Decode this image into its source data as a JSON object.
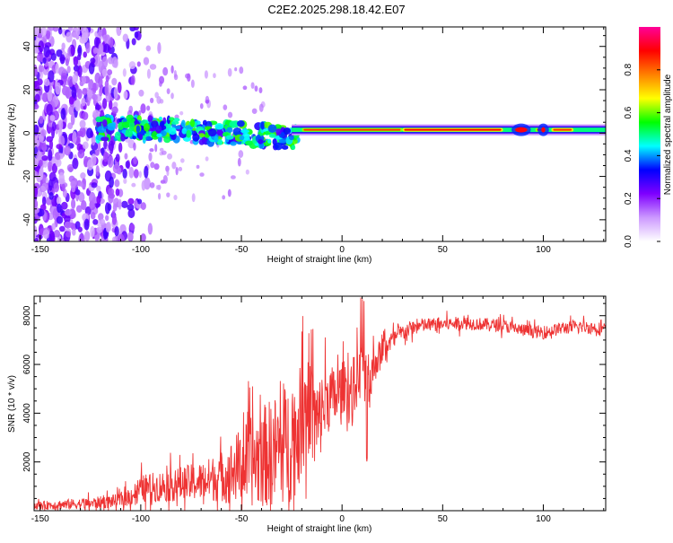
{
  "title": "C2E2.2025.298.18.42.E07",
  "chart_data": [
    {
      "type": "heatmap",
      "name": "spectrogram",
      "xlabel": "Height of straight line (km)",
      "ylabel": "Frequency (Hz)",
      "xlim": [
        -153,
        131
      ],
      "ylim": [
        -50,
        49
      ],
      "xticks": [
        -150,
        -100,
        -50,
        0,
        50,
        100
      ],
      "yticks": [
        -40,
        -20,
        0,
        20,
        40
      ],
      "tone_band": {
        "start_x": -25,
        "end_x": 131,
        "frequency_hz": 1.5,
        "strong_segments": [
          [
            -20,
            30
          ],
          [
            30,
            80
          ],
          [
            85,
            93
          ],
          [
            96,
            102
          ],
          [
            104,
            115
          ]
        ]
      },
      "scattered_region": {
        "x_range": [
          -153,
          -108
        ],
        "frequency_range": [
          -50,
          49
        ]
      },
      "colorbar": {
        "label": "Normalized spectral amplitude",
        "min": 0.0,
        "max": 1.0,
        "ticks": [
          0.0,
          0.2,
          0.4,
          0.6,
          0.8
        ],
        "tick_labels": [
          "0.0",
          "0.2",
          "0.4",
          "0.6",
          "0.8"
        ],
        "colors": [
          "#ffffff",
          "#cc99ff",
          "#7f00ff",
          "#0000ff",
          "#00ffff",
          "#00ff00",
          "#ffff00",
          "#ff8000",
          "#ff0000",
          "#ff0099"
        ]
      }
    },
    {
      "type": "line",
      "name": "snr",
      "xlabel": "Height of straight line (km)",
      "ylabel": "SNR (10 * v/v)",
      "xlim": [
        -153,
        131
      ],
      "ylim": [
        0,
        8800
      ],
      "xticks": [
        -150,
        -100,
        -50,
        0,
        50,
        100
      ],
      "yticks": [
        2000,
        4000,
        6000,
        8000
      ],
      "color": "#ee3333",
      "x": [
        -153,
        -140,
        -125,
        -112,
        -105,
        -100,
        -90,
        -80,
        -70,
        -60,
        -55,
        -50,
        -45,
        -40,
        -35,
        -30,
        -25,
        -22,
        -20,
        -18,
        -16,
        -14,
        -12,
        -10,
        -8,
        -6,
        -4,
        -2,
        0,
        2,
        4,
        6,
        8,
        10,
        12,
        14,
        16,
        18,
        20,
        22,
        25,
        30,
        35,
        40,
        50,
        60,
        70,
        80,
        90,
        100,
        110,
        120,
        131
      ],
      "values": [
        200,
        250,
        300,
        400,
        600,
        900,
        1000,
        1100,
        1200,
        1400,
        1600,
        1900,
        2000,
        2200,
        2400,
        2600,
        2900,
        3200,
        3800,
        4200,
        4000,
        3900,
        3500,
        4100,
        4500,
        4700,
        4600,
        4800,
        5000,
        5200,
        4700,
        5100,
        5500,
        5800,
        5600,
        5400,
        6000,
        6300,
        6600,
        6800,
        7000,
        7300,
        7500,
        7600,
        7650,
        7700,
        7650,
        7600,
        7400,
        7300,
        7500,
        7550,
        7450
      ],
      "noise": [
        200,
        250,
        300,
        350,
        500,
        700,
        800,
        900,
        1000,
        1300,
        1600,
        2000,
        2300,
        2600,
        2800,
        3000,
        3200,
        3000,
        2900,
        2700,
        2500,
        2400,
        2300,
        2100,
        1900,
        1700,
        1600,
        1500,
        1400,
        1300,
        1800,
        1600,
        1400,
        1300,
        1800,
        1500,
        1000,
        800,
        700,
        600,
        500,
        450,
        400,
        380,
        350,
        340,
        330,
        330,
        330,
        330,
        330,
        330,
        330
      ]
    }
  ]
}
